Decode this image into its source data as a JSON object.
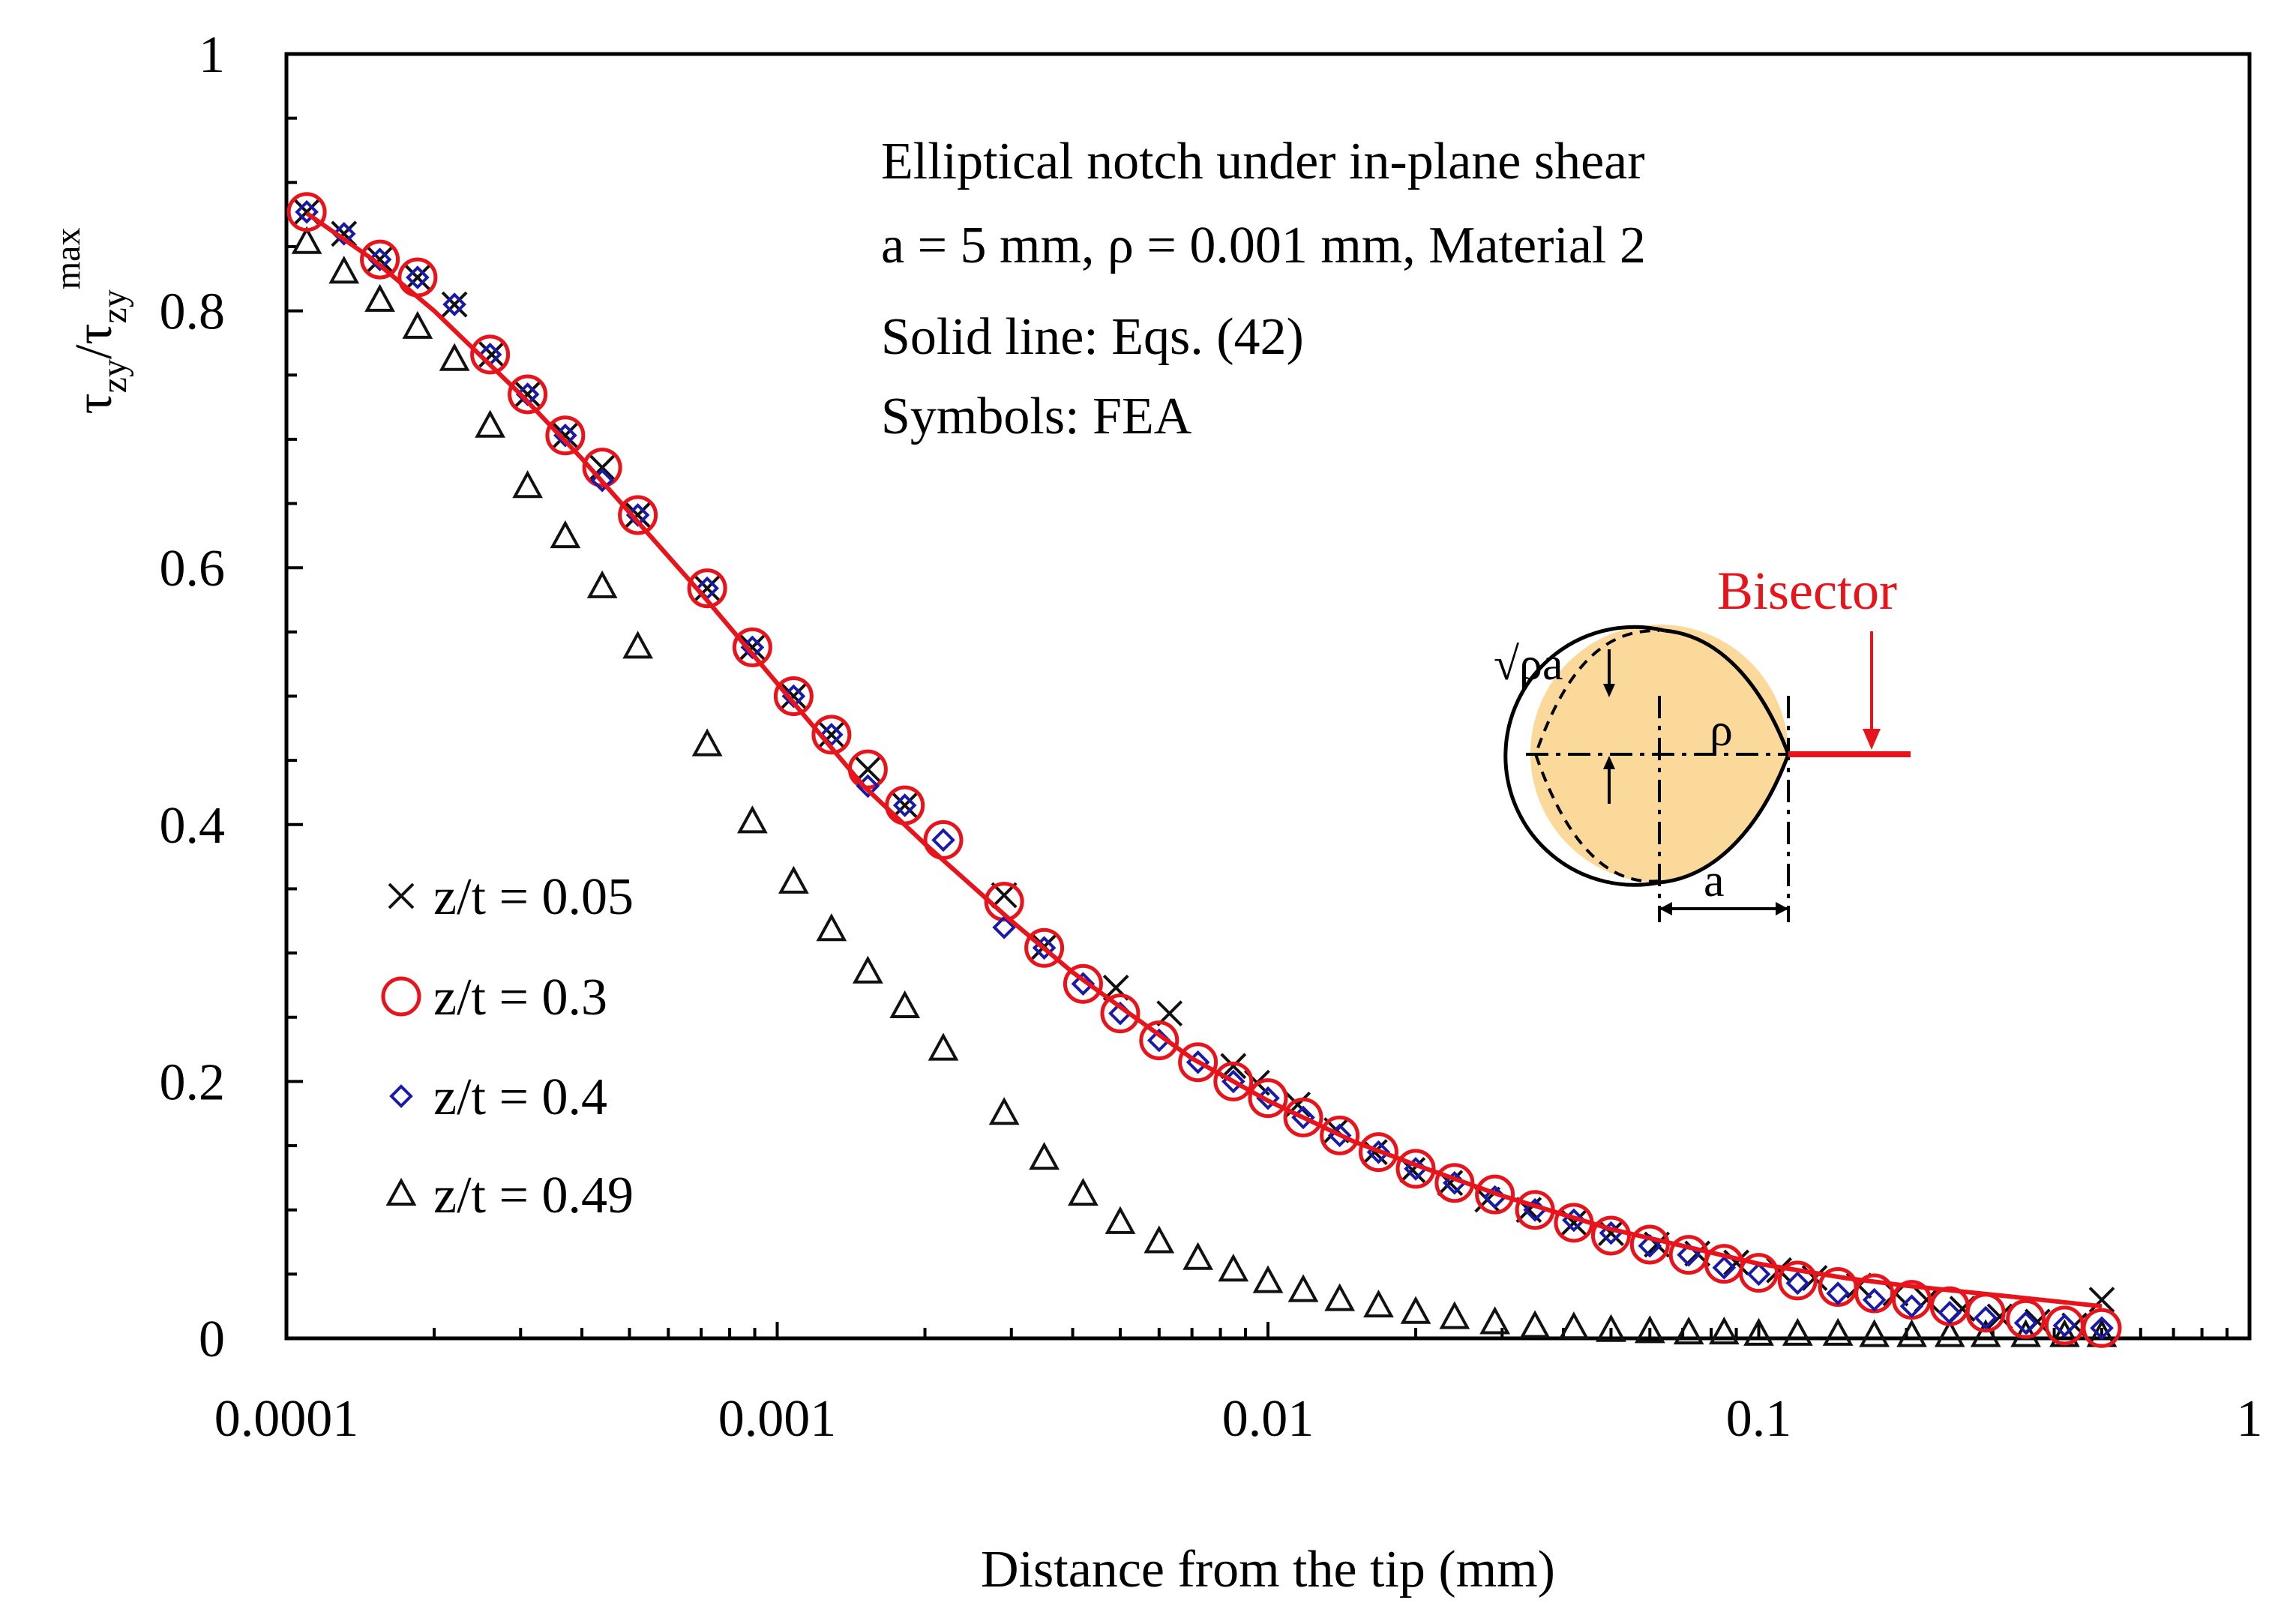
{
  "chart_data": {
    "type": "scatter",
    "xscale": "log",
    "xlim": [
      0.0001,
      1
    ],
    "ylim": [
      0,
      1
    ],
    "xlabel": "Distance from the tip (mm)",
    "ylabel": "τzy/τzy max",
    "x_ticks": [
      0.0001,
      0.001,
      0.01,
      0.1,
      1
    ],
    "x_tick_labels": [
      "0.0001",
      "0.001",
      "0.01",
      "0.1",
      "1"
    ],
    "y_ticks": [
      0,
      0.2,
      0.4,
      0.6,
      0.8,
      1
    ],
    "y_tick_labels": [
      "0",
      "0.2",
      "0.4",
      "0.6",
      "0.8",
      "1"
    ],
    "grid": false,
    "annotations": [
      "Elliptical notch under in-plane shear",
      "a = 5 mm, ρ = 0.001 mm, Material 2",
      "Solid line: Eqs. (42)",
      "Symbols: FEA"
    ],
    "inset": {
      "bisector_label": "Bisector",
      "sqrt_label": "√ρa",
      "rho_label": "ρ",
      "a_label": "a"
    },
    "colors": {
      "curve": "#e8141c",
      "circle": "#e8141c",
      "diamond": "#1a1aaa",
      "black": "#111111",
      "inset_fill": "#fad99a"
    },
    "legend": {
      "position": "bottom-left",
      "entries": [
        {
          "series": "x",
          "label": "z/t = 0.05",
          "marker": "x"
        },
        {
          "series": "o",
          "label": "z/t = 0.3",
          "marker": "circle"
        },
        {
          "series": "d",
          "label": "z/t = 0.4",
          "marker": "diamond"
        },
        {
          "series": "t",
          "label": "z/t = 0.49",
          "marker": "triangle"
        }
      ]
    },
    "line": {
      "x": [
        0.00011,
        0.00015,
        0.0002,
        0.0003,
        0.0004,
        0.0005,
        0.0007,
        0.001,
        0.0015,
        0.002,
        0.003,
        0.004,
        0.005,
        0.007,
        0.01,
        0.015,
        0.02,
        0.03,
        0.05,
        0.07,
        0.1,
        0.15,
        0.2,
        0.3,
        0.5
      ],
      "y": [
        0.876,
        0.84,
        0.8,
        0.735,
        0.685,
        0.643,
        0.58,
        0.51,
        0.43,
        0.385,
        0.325,
        0.285,
        0.258,
        0.218,
        0.185,
        0.153,
        0.135,
        0.111,
        0.085,
        0.072,
        0.058,
        0.047,
        0.041,
        0.034,
        0.025
      ]
    },
    "series": [
      {
        "id": "x",
        "label": "z/t = 0.05",
        "x": [
          0.00011,
          0.000131,
          0.000155,
          0.000185,
          0.00022,
          0.000262,
          0.00031,
          0.00037,
          0.00044,
          0.00052,
          0.00072,
          0.00089,
          0.00108,
          0.00129,
          0.00153,
          0.00182,
          0.0029,
          0.0035,
          0.0049,
          0.0063,
          0.0085,
          0.0095,
          0.0115,
          0.0138,
          0.0165,
          0.0197,
          0.0235,
          0.028,
          0.034,
          0.042,
          0.05,
          0.062,
          0.075,
          0.09,
          0.11,
          0.13,
          0.16,
          0.19,
          0.22,
          0.26,
          0.31,
          0.37,
          0.44,
          0.5
        ],
        "y": [
          0.877,
          0.86,
          0.84,
          0.826,
          0.805,
          0.766,
          0.735,
          0.703,
          0.678,
          0.641,
          0.584,
          0.538,
          0.5,
          0.47,
          0.443,
          0.415,
          0.345,
          0.305,
          0.273,
          0.253,
          0.212,
          0.199,
          0.182,
          0.162,
          0.145,
          0.131,
          0.121,
          0.108,
          0.1,
          0.09,
          0.082,
          0.073,
          0.066,
          0.059,
          0.053,
          0.047,
          0.041,
          0.035,
          0.03,
          0.023,
          0.017,
          0.013,
          0.01,
          0.03
        ]
      },
      {
        "id": "o",
        "label": "z/t = 0.3",
        "x": [
          0.00011,
          0.000155,
          0.000185,
          0.00026,
          0.00031,
          0.00037,
          0.00044,
          0.00052,
          0.00072,
          0.00089,
          0.00108,
          0.00129,
          0.00153,
          0.00182,
          0.00218,
          0.0029,
          0.0035,
          0.0042,
          0.005,
          0.006,
          0.0072,
          0.0085,
          0.01,
          0.0118,
          0.014,
          0.0168,
          0.02,
          0.024,
          0.029,
          0.035,
          0.042,
          0.05,
          0.06,
          0.072,
          0.085,
          0.1,
          0.12,
          0.145,
          0.172,
          0.205,
          0.245,
          0.29,
          0.35,
          0.42,
          0.5
        ],
        "y": [
          0.877,
          0.84,
          0.826,
          0.766,
          0.735,
          0.703,
          0.678,
          0.641,
          0.584,
          0.538,
          0.5,
          0.47,
          0.443,
          0.415,
          0.388,
          0.34,
          0.304,
          0.276,
          0.253,
          0.232,
          0.215,
          0.2,
          0.187,
          0.172,
          0.158,
          0.145,
          0.132,
          0.121,
          0.112,
          0.1,
          0.09,
          0.08,
          0.073,
          0.065,
          0.058,
          0.051,
          0.045,
          0.04,
          0.035,
          0.03,
          0.025,
          0.02,
          0.015,
          0.01,
          0.008
        ]
      },
      {
        "id": "d",
        "label": "z/t = 0.4",
        "x": [
          0.00011,
          0.000131,
          0.000155,
          0.000185,
          0.00022,
          0.00026,
          0.00031,
          0.00037,
          0.00044,
          0.00052,
          0.00072,
          0.00089,
          0.00108,
          0.00129,
          0.00153,
          0.00182,
          0.00218,
          0.0029,
          0.0035,
          0.0042,
          0.005,
          0.006,
          0.0072,
          0.0085,
          0.01,
          0.0118,
          0.014,
          0.0168,
          0.02,
          0.024,
          0.029,
          0.035,
          0.042,
          0.05,
          0.06,
          0.072,
          0.085,
          0.1,
          0.12,
          0.145,
          0.172,
          0.205,
          0.245,
          0.29,
          0.35,
          0.42,
          0.5
        ],
        "y": [
          0.877,
          0.86,
          0.84,
          0.826,
          0.805,
          0.766,
          0.735,
          0.703,
          0.668,
          0.641,
          0.584,
          0.538,
          0.5,
          0.47,
          0.43,
          0.415,
          0.388,
          0.32,
          0.304,
          0.276,
          0.253,
          0.232,
          0.215,
          0.2,
          0.187,
          0.172,
          0.158,
          0.145,
          0.132,
          0.121,
          0.11,
          0.1,
          0.092,
          0.082,
          0.072,
          0.065,
          0.055,
          0.05,
          0.043,
          0.035,
          0.03,
          0.025,
          0.02,
          0.016,
          0.012,
          0.01,
          0.008
        ]
      },
      {
        "id": "t",
        "label": "z/t = 0.49",
        "x": [
          0.00011,
          0.000131,
          0.000155,
          0.000185,
          0.00022,
          0.00026,
          0.00031,
          0.00037,
          0.00044,
          0.00052,
          0.00072,
          0.00089,
          0.00108,
          0.00129,
          0.00153,
          0.00182,
          0.00218,
          0.0029,
          0.0035,
          0.0042,
          0.005,
          0.006,
          0.0072,
          0.0085,
          0.01,
          0.0118,
          0.014,
          0.0168,
          0.02,
          0.024,
          0.029,
          0.035,
          0.042,
          0.05,
          0.06,
          0.072,
          0.085,
          0.1,
          0.12,
          0.145,
          0.172,
          0.205,
          0.245,
          0.29,
          0.35,
          0.42,
          0.5
        ],
        "y": [
          0.853,
          0.83,
          0.808,
          0.787,
          0.762,
          0.71,
          0.663,
          0.624,
          0.585,
          0.538,
          0.462,
          0.402,
          0.355,
          0.318,
          0.285,
          0.258,
          0.225,
          0.175,
          0.14,
          0.112,
          0.09,
          0.075,
          0.062,
          0.053,
          0.044,
          0.037,
          0.03,
          0.025,
          0.02,
          0.016,
          0.012,
          0.009,
          0.008,
          0.006,
          0.005,
          0.004,
          0.004,
          0.003,
          0.003,
          0.003,
          0.002,
          0.002,
          0.002,
          0.002,
          0.002,
          0.002,
          0.002
        ]
      }
    ]
  }
}
